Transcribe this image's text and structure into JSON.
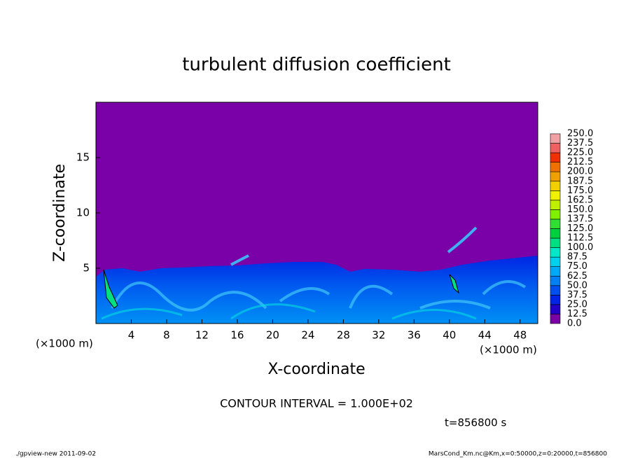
{
  "chart_data": {
    "type": "contour",
    "title": "turbulent diffusion coefficient",
    "xlabel": "X-coordinate",
    "ylabel": "Z-coordinate",
    "x_unit_left": "(×1000 m)",
    "x_unit_right": "(×1000 m)",
    "xlim": [
      0,
      50
    ],
    "xticks": [
      4,
      8,
      12,
      16,
      20,
      24,
      28,
      32,
      36,
      40,
      44,
      48
    ],
    "ylim": [
      0,
      20
    ],
    "yticks": [
      5,
      10,
      15
    ],
    "colorbar": {
      "levels": [
        {
          "value": 0,
          "label": "0.0"
        },
        12.5,
        {
          "value": 25,
          "label": "25.0"
        },
        37.5,
        {
          "value": 50,
          "label": "50.0"
        },
        62.5,
        {
          "value": 75,
          "label": "75.0"
        },
        87.5,
        {
          "value": 100,
          "label": "100.0"
        },
        112.5,
        {
          "value": 125,
          "label": "125.0"
        },
        137.5,
        {
          "value": 150,
          "label": "150.0"
        },
        162.5,
        {
          "value": 175,
          "label": "175.0"
        },
        187.5,
        {
          "value": 200,
          "label": "200.0"
        },
        212.5,
        {
          "value": 225,
          "label": "225.0"
        },
        237.5,
        {
          "value": 250,
          "label": "250.0"
        }
      ],
      "colors": [
        "#7a00a8",
        "#2200c8",
        "#0024e4",
        "#0050f0",
        "#0080f5",
        "#00a8f8",
        "#00d0f0",
        "#00e8c8",
        "#00e080",
        "#00d040",
        "#30e030",
        "#80f000",
        "#c0f000",
        "#f0f000",
        "#f0d000",
        "#f0a000",
        "#f07000",
        "#f03000",
        "#f06060",
        "#f0a0a0"
      ]
    },
    "contour_interval": "CONTOUR INTERVAL = 1.000E+02",
    "time_label": "t=856800 s",
    "footer_left": "./gpview-new  2011-09-02",
    "footer_right": "MarsCond_Km.nc@Km,x=0:50000,z=0:20000,t=856800"
  }
}
